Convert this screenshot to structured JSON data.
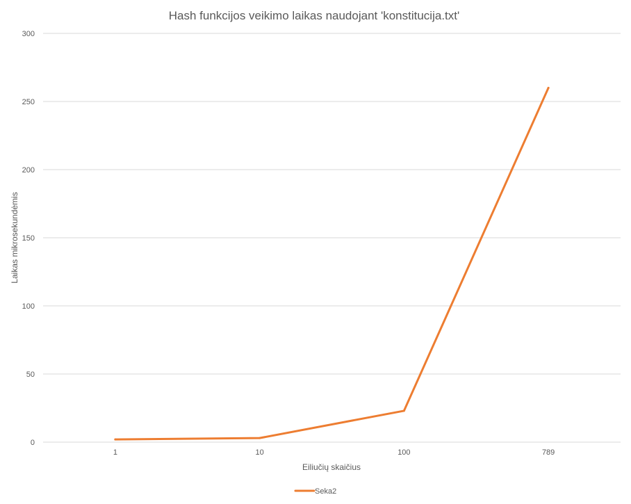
{
  "chart_data": {
    "type": "line",
    "title": "Hash funkcijos veikimo laikas naudojant 'konstitucija.txt'",
    "xlabel": "Eiliučių skaičius",
    "ylabel": "Laikas mikrosekundėmis",
    "categories": [
      "1",
      "10",
      "100",
      "789"
    ],
    "series": [
      {
        "name": "Seka2",
        "values": [
          2,
          3,
          23,
          260
        ],
        "color": "#ED7D31"
      }
    ],
    "ylim": [
      0,
      300
    ],
    "yticks": [
      0,
      50,
      100,
      150,
      200,
      250,
      300
    ],
    "grid": true,
    "legend": "bottom"
  }
}
